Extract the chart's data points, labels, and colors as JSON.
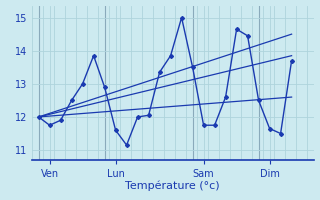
{
  "xlabel": "Température (°c)",
  "background_color": "#cdeaf0",
  "grid_color": "#aed4dc",
  "line_color": "#1a3ab0",
  "vline_color": "#8aaabb",
  "ylim": [
    10.7,
    15.35
  ],
  "xlim": [
    -0.3,
    12.5
  ],
  "day_labels": [
    "Ven",
    "Lun",
    "Sam",
    "Dim"
  ],
  "day_positions": [
    0.5,
    3.5,
    7.5,
    10.5
  ],
  "vline_positions": [
    0,
    3,
    7,
    10
  ],
  "yticks": [
    11,
    12,
    13,
    14,
    15
  ],
  "xtick_minor": 0.5,
  "temp_x": [
    0,
    0.5,
    1.0,
    1.5,
    2.0,
    2.5,
    3.0,
    3.5,
    4.0,
    4.5,
    5.0,
    5.5,
    6.0,
    6.5,
    7.0,
    7.5,
    8.0,
    8.5,
    9.0,
    9.5,
    10.0,
    10.5,
    11.0,
    11.5
  ],
  "temp_y": [
    12.0,
    11.75,
    11.9,
    12.5,
    13.0,
    13.85,
    12.9,
    11.6,
    11.15,
    12.0,
    12.05,
    13.35,
    13.85,
    15.0,
    13.5,
    11.75,
    11.75,
    12.6,
    14.65,
    14.45,
    12.5,
    11.65,
    11.5,
    13.7
  ],
  "trend_lines": [
    {
      "x": [
        0,
        11.5
      ],
      "y": [
        12.0,
        12.6
      ]
    },
    {
      "x": [
        0,
        11.5
      ],
      "y": [
        12.0,
        13.85
      ]
    },
    {
      "x": [
        0,
        11.5
      ],
      "y": [
        12.0,
        14.5
      ]
    }
  ]
}
